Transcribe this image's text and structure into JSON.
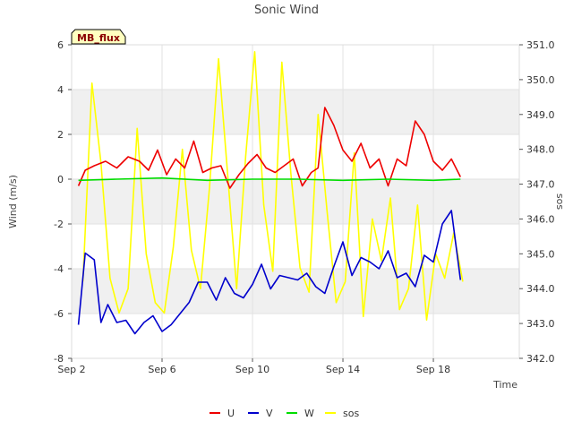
{
  "chart_data": {
    "type": "line",
    "title": "Sonic Wind",
    "badge": "MB_flux",
    "xlabel": "Time",
    "ylabel": "Wind (m/s)",
    "y2label": "sos",
    "xlim": [
      0,
      19.8
    ],
    "ylim": [
      -8,
      6
    ],
    "y2lim": [
      342.0,
      351.0
    ],
    "x_ticks": [
      {
        "value": 0,
        "label": "Sep 2"
      },
      {
        "value": 4,
        "label": "Sep 6"
      },
      {
        "value": 8,
        "label": "Sep 10"
      },
      {
        "value": 12,
        "label": "Sep 14"
      },
      {
        "value": 16,
        "label": "Sep 18"
      }
    ],
    "y_ticks": [
      -8,
      -6,
      -4,
      -2,
      0,
      2,
      4,
      6
    ],
    "y2_ticks": [
      "342.0",
      "343.0",
      "344.0",
      "345.0",
      "346.0",
      "347.0",
      "348.0",
      "349.0",
      "350.0",
      "351.0"
    ],
    "series": [
      {
        "name": "U",
        "color": "#ee0000",
        "axis": "left",
        "x": [
          0.3,
          0.6,
          1.0,
          1.5,
          2.0,
          2.5,
          3.0,
          3.4,
          3.8,
          4.2,
          4.6,
          5.0,
          5.4,
          5.8,
          6.2,
          6.6,
          7.0,
          7.4,
          7.8,
          8.2,
          8.6,
          9.0,
          9.4,
          9.8,
          10.2,
          10.6,
          10.9,
          11.2,
          11.6,
          12.0,
          12.4,
          12.8,
          13.2,
          13.6,
          14.0,
          14.4,
          14.8,
          15.2,
          15.6,
          16.0,
          16.4,
          16.8,
          17.2
        ],
        "values": [
          -0.3,
          0.4,
          0.6,
          0.8,
          0.5,
          1.0,
          0.8,
          0.4,
          1.3,
          0.2,
          0.9,
          0.5,
          1.7,
          0.3,
          0.5,
          0.6,
          -0.4,
          0.2,
          0.7,
          1.1,
          0.5,
          0.3,
          0.6,
          0.9,
          -0.3,
          0.3,
          0.5,
          3.2,
          2.4,
          1.3,
          0.8,
          1.6,
          0.5,
          0.9,
          -0.3,
          0.9,
          0.6,
          2.6,
          2.0,
          0.8,
          0.4,
          0.9,
          0.1
        ]
      },
      {
        "name": "V",
        "color": "#0000cc",
        "axis": "left",
        "x": [
          0.3,
          0.6,
          1.0,
          1.3,
          1.6,
          2.0,
          2.4,
          2.8,
          3.2,
          3.6,
          4.0,
          4.4,
          4.8,
          5.2,
          5.6,
          6.0,
          6.4,
          6.8,
          7.2,
          7.6,
          8.0,
          8.4,
          8.8,
          9.2,
          9.6,
          10.0,
          10.4,
          10.8,
          11.2,
          11.6,
          12.0,
          12.4,
          12.8,
          13.2,
          13.6,
          14.0,
          14.4,
          14.8,
          15.2,
          15.6,
          16.0,
          16.4,
          16.8,
          17.2
        ],
        "values": [
          -6.5,
          -3.3,
          -3.6,
          -6.4,
          -5.6,
          -6.4,
          -6.3,
          -6.9,
          -6.4,
          -6.1,
          -6.8,
          -6.5,
          -6.0,
          -5.5,
          -4.6,
          -4.6,
          -5.4,
          -4.4,
          -5.1,
          -5.3,
          -4.7,
          -3.8,
          -4.9,
          -4.3,
          -4.4,
          -4.5,
          -4.2,
          -4.8,
          -5.1,
          -3.9,
          -2.8,
          -4.3,
          -3.5,
          -3.7,
          -4.0,
          -3.2,
          -4.4,
          -4.2,
          -4.8,
          -3.4,
          -3.7,
          -2.0,
          -1.4,
          -4.5
        ]
      },
      {
        "name": "W",
        "color": "#00dd00",
        "axis": "left",
        "x": [
          0.3,
          2.0,
          4.0,
          6.0,
          8.0,
          10.0,
          12.0,
          14.0,
          16.0,
          17.2
        ],
        "values": [
          -0.05,
          0.0,
          0.05,
          -0.05,
          0.0,
          0.0,
          -0.05,
          0.0,
          -0.05,
          0.0
        ]
      },
      {
        "name": "sos",
        "color": "#ffff00",
        "axis": "right",
        "x": [
          0.5,
          0.9,
          1.3,
          1.7,
          2.1,
          2.5,
          2.9,
          3.3,
          3.7,
          4.1,
          4.5,
          4.9,
          5.3,
          5.7,
          6.1,
          6.5,
          6.9,
          7.3,
          7.7,
          8.1,
          8.5,
          8.9,
          9.3,
          9.7,
          10.1,
          10.5,
          10.9,
          11.3,
          11.7,
          12.1,
          12.5,
          12.9,
          13.3,
          13.7,
          14.1,
          14.5,
          14.9,
          15.3,
          15.7,
          16.1,
          16.5,
          16.9,
          17.3
        ],
        "values": [
          344.2,
          349.9,
          347.6,
          344.3,
          343.3,
          344.0,
          348.6,
          345.0,
          343.6,
          343.3,
          345.2,
          348.0,
          345.1,
          344.0,
          346.9,
          350.6,
          347.3,
          344.0,
          347.8,
          350.8,
          346.4,
          344.5,
          350.5,
          347.3,
          344.6,
          343.9,
          349.0,
          346.2,
          343.6,
          344.2,
          347.9,
          343.2,
          346.0,
          344.8,
          346.6,
          343.4,
          344.0,
          346.4,
          343.1,
          345.0,
          344.3,
          345.6,
          344.2
        ]
      }
    ]
  }
}
